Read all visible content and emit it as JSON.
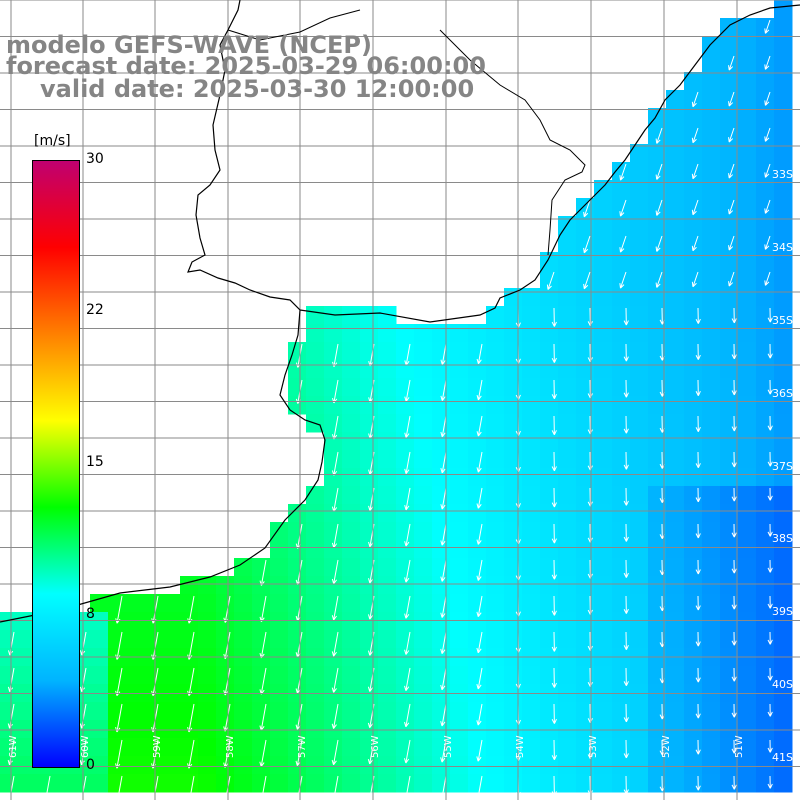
{
  "header": {
    "title": "modelo GEFS-WAVE (NCEP)",
    "forecast": "forecast date: 2025-03-29 06:00:00",
    "valid": "valid date: 2025-03-30 12:00:00"
  },
  "colorbar": {
    "unit": "[m/s]",
    "min": 0,
    "max": 30,
    "ticks": [
      "30",
      "22",
      "15",
      "8",
      "0"
    ],
    "tick_values": [
      30,
      22,
      15,
      8,
      0
    ],
    "stops": [
      "#0000ff",
      "#00b4ff",
      "#00ffff",
      "#00ff00",
      "#ffff00",
      "#ff8000",
      "#ff0000",
      "#c00070"
    ]
  },
  "map": {
    "lat_labels": [
      "33S",
      "34S",
      "35S",
      "36S",
      "37S",
      "38S",
      "39S",
      "40S",
      "41S"
    ],
    "lon_labels": [
      "61W",
      "60W",
      "59W",
      "58W",
      "57W",
      "56W",
      "55W",
      "54W",
      "53W",
      "52W",
      "51W"
    ],
    "grid_color": "#8a8a8a",
    "coast_color": "#000000",
    "arrow_color": "#ffffff",
    "land_color": "#ffffff"
  }
}
